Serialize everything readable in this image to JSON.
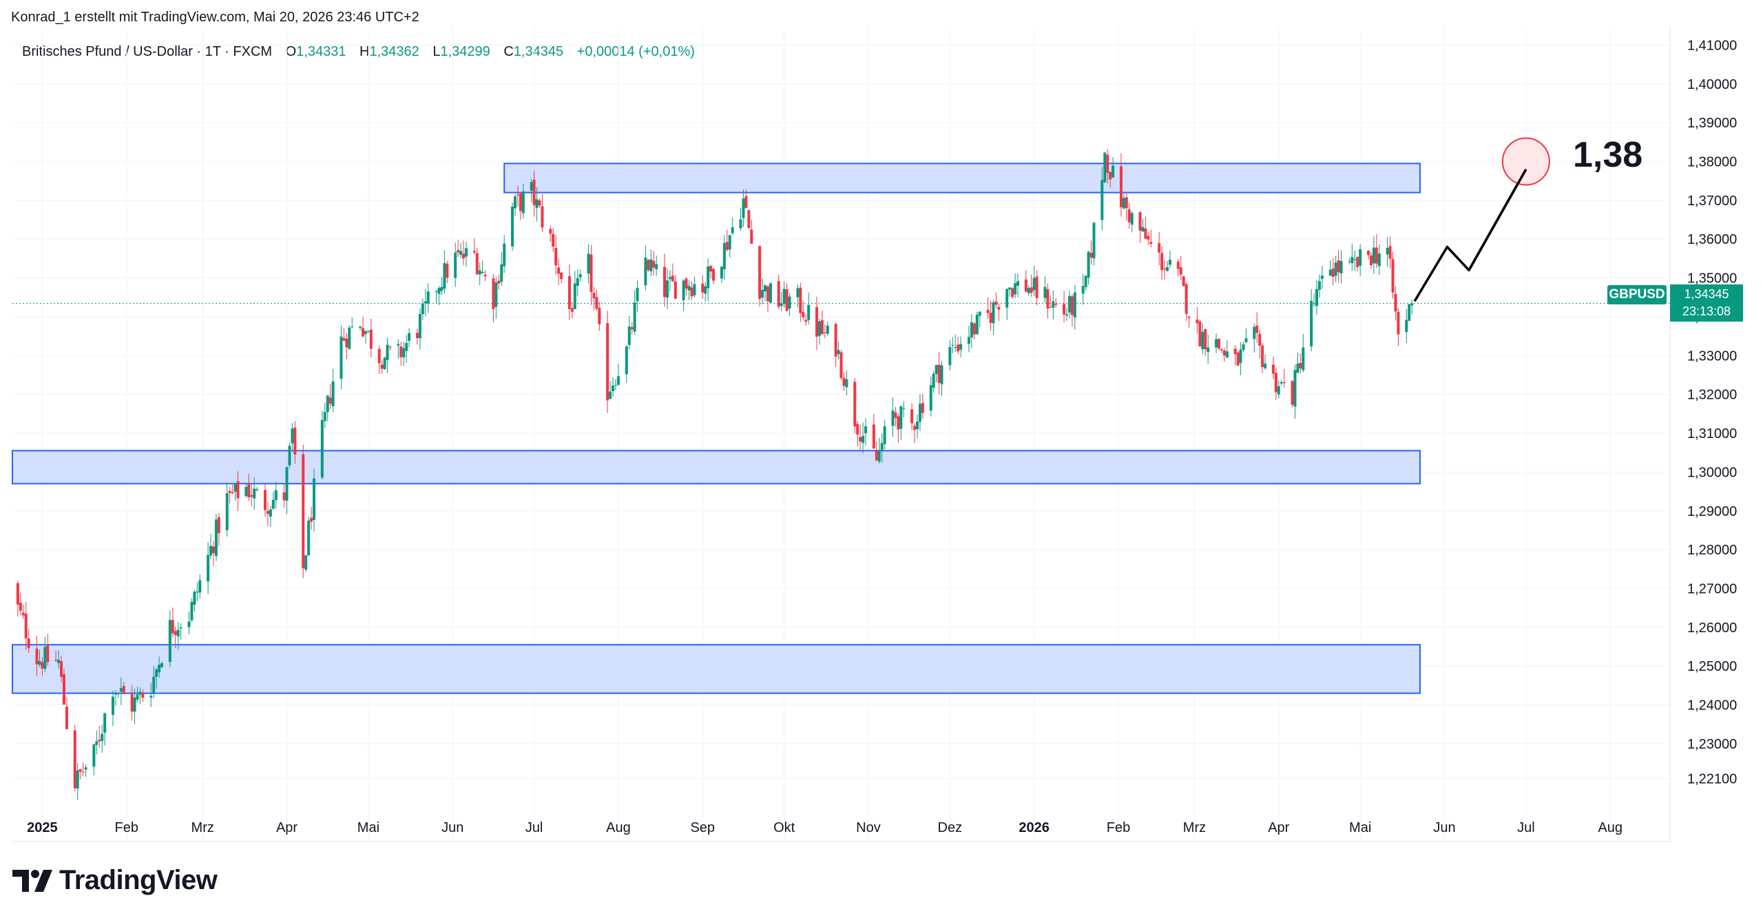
{
  "attribution": "Konrad_1 erstellt mit TradingView.com, Mai 20, 2026 23:46 UTC+2",
  "legend": {
    "symbol_text": "Britisches Pfund / US-Dollar · 1T · FXCM",
    "open_label": "O",
    "open": "1,34331",
    "high_label": "H",
    "high": "1,34362",
    "low_label": "L",
    "low": "1,34299",
    "close_label": "C",
    "close": "1,34345",
    "change": "+0,00014 (+0,01%)"
  },
  "symbol_badge": "GBPUSD",
  "price_badge": {
    "price": "1,34345",
    "countdown": "23:13:08"
  },
  "target_label": "1,38",
  "brand": "TradingView",
  "colors": {
    "up": "#089981",
    "down": "#F23645",
    "zone_fill": "#D3DFFF",
    "zone_border": "#2962FF",
    "grid": "#F0F3FA",
    "text": "#131722",
    "target_fill": "#FDE7E9",
    "target_border": "#F23645"
  },
  "chart_data": {
    "type": "candlestick",
    "symbol": "GBPUSD",
    "timeframe": "1T",
    "x_ticks": [
      {
        "label": "2025",
        "date": "2025-01-01",
        "bold": true
      },
      {
        "label": "Feb",
        "date": "2025-02-01"
      },
      {
        "label": "Mrz",
        "date": "2025-03-01"
      },
      {
        "label": "Apr",
        "date": "2025-04-01"
      },
      {
        "label": "Mai",
        "date": "2025-05-01"
      },
      {
        "label": "Jun",
        "date": "2025-06-01"
      },
      {
        "label": "Jul",
        "date": "2025-07-01"
      },
      {
        "label": "Aug",
        "date": "2025-08-01"
      },
      {
        "label": "Sep",
        "date": "2025-09-01"
      },
      {
        "label": "Okt",
        "date": "2025-10-01"
      },
      {
        "label": "Nov",
        "date": "2025-11-01"
      },
      {
        "label": "Dez",
        "date": "2025-12-01"
      },
      {
        "label": "2026",
        "date": "2026-01-01",
        "bold": true
      },
      {
        "label": "Feb",
        "date": "2026-02-01"
      },
      {
        "label": "Mrz",
        "date": "2026-03-01"
      },
      {
        "label": "Apr",
        "date": "2026-04-01"
      },
      {
        "label": "Mai",
        "date": "2026-05-01"
      },
      {
        "label": "Jun",
        "date": "2026-06-01"
      },
      {
        "label": "Jul",
        "date": "2026-07-01"
      },
      {
        "label": "Aug",
        "date": "2026-08-01"
      }
    ],
    "y_ticks": [
      "1,41000",
      "1,40000",
      "1,39000",
      "1,38000",
      "1,37000",
      "1,36000",
      "1,35000",
      "1,34000",
      "1,33000",
      "1,32000",
      "1,31000",
      "1,30000",
      "1,29000",
      "1,28000",
      "1,27000",
      "1,26000",
      "1,25000",
      "1,24000",
      "1,23000",
      "1,22100"
    ],
    "ylim": [
      1.2165,
      1.4115
    ],
    "xlim": [
      "2024-12-21",
      "2026-08-23"
    ],
    "path_points": [
      {
        "date": "2024-12-20",
        "close": 1.27
      },
      {
        "date": "2024-12-30",
        "close": 1.252
      },
      {
        "date": "2025-01-07",
        "close": 1.251
      },
      {
        "date": "2025-01-13",
        "close": 1.22
      },
      {
        "date": "2025-01-20",
        "close": 1.227
      },
      {
        "date": "2025-01-27",
        "close": 1.245
      },
      {
        "date": "2025-02-03",
        "close": 1.24
      },
      {
        "date": "2025-02-10",
        "close": 1.245
      },
      {
        "date": "2025-02-17",
        "close": 1.26
      },
      {
        "date": "2025-02-24",
        "close": 1.263
      },
      {
        "date": "2025-03-03",
        "close": 1.278
      },
      {
        "date": "2025-03-10",
        "close": 1.293
      },
      {
        "date": "2025-03-17",
        "close": 1.296
      },
      {
        "date": "2025-03-24",
        "close": 1.292
      },
      {
        "date": "2025-03-31",
        "close": 1.294
      },
      {
        "date": "2025-04-03",
        "close": 1.31
      },
      {
        "date": "2025-04-07",
        "close": 1.275
      },
      {
        "date": "2025-04-14",
        "close": 1.31
      },
      {
        "date": "2025-04-21",
        "close": 1.334
      },
      {
        "date": "2025-04-28",
        "close": 1.339
      },
      {
        "date": "2025-05-05",
        "close": 1.33
      },
      {
        "date": "2025-05-12",
        "close": 1.33
      },
      {
        "date": "2025-05-19",
        "close": 1.337
      },
      {
        "date": "2025-05-26",
        "close": 1.348
      },
      {
        "date": "2025-06-02",
        "close": 1.355
      },
      {
        "date": "2025-06-09",
        "close": 1.356
      },
      {
        "date": "2025-06-16",
        "close": 1.345
      },
      {
        "date": "2025-06-23",
        "close": 1.368
      },
      {
        "date": "2025-06-30",
        "close": 1.372
      },
      {
        "date": "2025-07-07",
        "close": 1.36
      },
      {
        "date": "2025-07-14",
        "close": 1.342
      },
      {
        "date": "2025-07-21",
        "close": 1.353
      },
      {
        "date": "2025-07-28",
        "close": 1.321
      },
      {
        "date": "2025-08-04",
        "close": 1.331
      },
      {
        "date": "2025-08-11",
        "close": 1.355
      },
      {
        "date": "2025-08-18",
        "close": 1.347
      },
      {
        "date": "2025-08-25",
        "close": 1.349
      },
      {
        "date": "2025-09-01",
        "close": 1.348
      },
      {
        "date": "2025-09-08",
        "close": 1.356
      },
      {
        "date": "2025-09-16",
        "close": 1.37
      },
      {
        "date": "2025-09-22",
        "close": 1.348
      },
      {
        "date": "2025-09-29",
        "close": 1.344
      },
      {
        "date": "2025-10-06",
        "close": 1.344
      },
      {
        "date": "2025-10-13",
        "close": 1.337
      },
      {
        "date": "2025-10-20",
        "close": 1.333
      },
      {
        "date": "2025-10-27",
        "close": 1.314
      },
      {
        "date": "2025-11-04",
        "close": 1.303
      },
      {
        "date": "2025-11-10",
        "close": 1.315
      },
      {
        "date": "2025-11-17",
        "close": 1.312
      },
      {
        "date": "2025-11-24",
        "close": 1.323
      },
      {
        "date": "2025-12-01",
        "close": 1.331
      },
      {
        "date": "2025-12-08",
        "close": 1.336
      },
      {
        "date": "2025-12-15",
        "close": 1.34
      },
      {
        "date": "2025-12-22",
        "close": 1.348
      },
      {
        "date": "2025-12-29",
        "close": 1.348
      },
      {
        "date": "2026-01-05",
        "close": 1.345
      },
      {
        "date": "2026-01-12",
        "close": 1.341
      },
      {
        "date": "2026-01-19",
        "close": 1.345
      },
      {
        "date": "2026-01-23",
        "close": 1.362
      },
      {
        "date": "2026-01-27",
        "close": 1.382
      },
      {
        "date": "2026-02-02",
        "close": 1.37
      },
      {
        "date": "2026-02-09",
        "close": 1.362
      },
      {
        "date": "2026-02-16",
        "close": 1.355
      },
      {
        "date": "2026-02-23",
        "close": 1.35
      },
      {
        "date": "2026-03-02",
        "close": 1.336
      },
      {
        "date": "2026-03-09",
        "close": 1.333
      },
      {
        "date": "2026-03-16",
        "close": 1.328
      },
      {
        "date": "2026-03-23",
        "close": 1.334
      },
      {
        "date": "2026-03-30",
        "close": 1.324
      },
      {
        "date": "2026-04-06",
        "close": 1.32
      },
      {
        "date": "2026-04-13",
        "close": 1.342
      },
      {
        "date": "2026-04-20",
        "close": 1.353
      },
      {
        "date": "2026-04-27",
        "close": 1.352
      },
      {
        "date": "2026-05-04",
        "close": 1.356
      },
      {
        "date": "2026-05-11",
        "close": 1.357
      },
      {
        "date": "2026-05-15",
        "close": 1.335
      },
      {
        "date": "2026-05-20",
        "close": 1.34345
      }
    ],
    "zones": [
      {
        "from": "2025-06-20",
        "to": "2026-05-23",
        "low": 1.372,
        "high": 1.3795
      },
      {
        "from": "2024-12-21",
        "to": "2026-05-23",
        "low": 1.297,
        "high": 1.3055
      },
      {
        "from": "2024-12-21",
        "to": "2026-05-23",
        "low": 1.243,
        "high": 1.2555
      }
    ],
    "projection": [
      {
        "date": "2026-05-21",
        "price": 1.344
      },
      {
        "date": "2026-06-02",
        "price": 1.358
      },
      {
        "date": "2026-06-10",
        "price": 1.352
      },
      {
        "date": "2026-07-01",
        "price": 1.378
      }
    ],
    "target": {
      "date": "2026-07-01",
      "price": 1.38
    },
    "last_price": 1.34345
  }
}
